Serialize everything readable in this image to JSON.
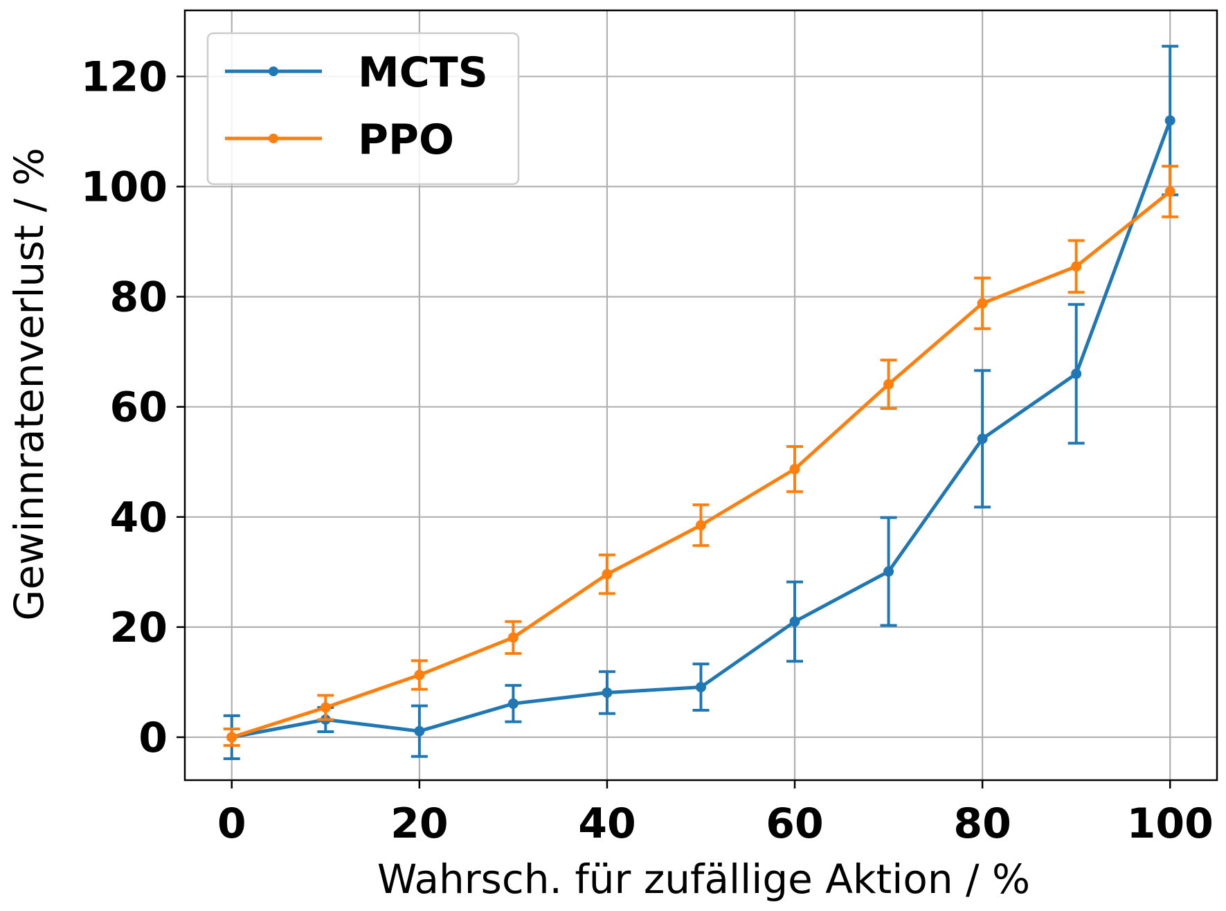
{
  "chart_data": {
    "type": "line",
    "xlabel": "Wahrsch. für zufällige Aktion / %",
    "ylabel": "Gewinnratenverlust / %",
    "xlim": [
      -5,
      105
    ],
    "ylim": [
      -7.8,
      132
    ],
    "xticks": [
      0,
      20,
      40,
      60,
      80,
      100
    ],
    "yticks": [
      0,
      20,
      40,
      60,
      80,
      100,
      120
    ],
    "grid": true,
    "legend_position": "top-left",
    "x": [
      0,
      10,
      20,
      30,
      40,
      50,
      60,
      70,
      80,
      90,
      100
    ],
    "series": [
      {
        "name": "MCTS",
        "color": "#1f77b4",
        "values": [
          0,
          3.2,
          1.1,
          6.1,
          8.1,
          9.1,
          21.0,
          30.1,
          54.2,
          66.0,
          112.0
        ],
        "error": [
          3.9,
          2.2,
          4.6,
          3.3,
          3.8,
          4.2,
          7.2,
          9.8,
          12.4,
          12.6,
          13.5
        ]
      },
      {
        "name": "PPO",
        "color": "#ff7f0e",
        "values": [
          0,
          5.4,
          11.3,
          18.1,
          29.6,
          38.5,
          48.7,
          64.1,
          78.8,
          85.5,
          99.1
        ],
        "error": [
          1.5,
          2.2,
          2.6,
          2.9,
          3.5,
          3.7,
          4.1,
          4.4,
          4.6,
          4.7,
          4.6
        ]
      }
    ]
  }
}
